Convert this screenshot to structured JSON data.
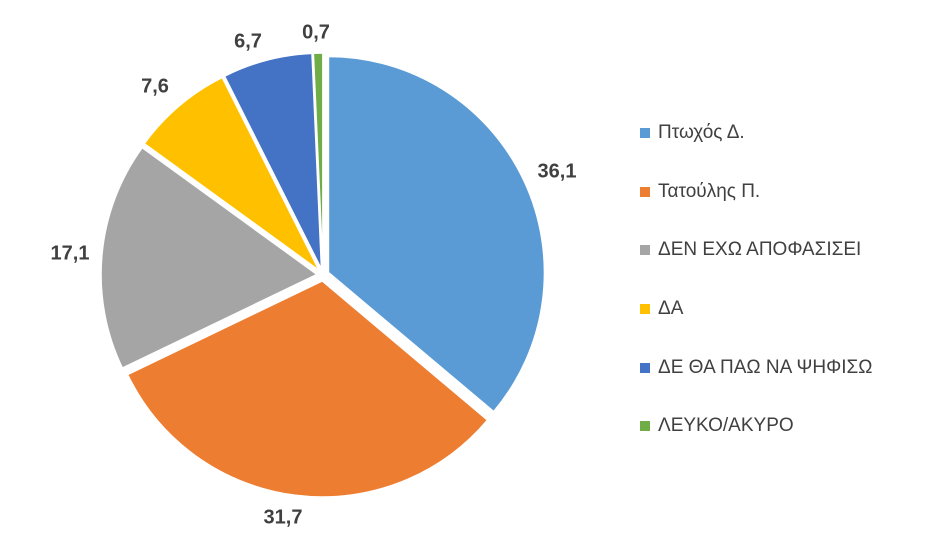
{
  "chart_data": {
    "type": "pie",
    "title": "",
    "categories": [
      "Πτωχός Δ.",
      "Τατούλης Π.",
      "ΔΕΝ ΕΧΩ ΑΠΟΦΑΣΙΣΕΙ",
      "ΔΑ",
      "ΔΕ ΘΑ ΠΑΩ ΝΑ ΨΗΦΙΣΩ",
      "ΛΕΥΚΟ/ΑΚΥΡΟ"
    ],
    "values": [
      36.1,
      31.7,
      17.1,
      7.6,
      6.7,
      0.7
    ],
    "value_labels": [
      "36,1",
      "31,7",
      "17,1",
      "7,6",
      "6,7",
      "0,7"
    ],
    "colors": [
      "#5B9BD5",
      "#ED7D31",
      "#A5A5A5",
      "#FFC000",
      "#4472C4",
      "#70AD47"
    ],
    "exploded": true,
    "legend_position": "right"
  }
}
